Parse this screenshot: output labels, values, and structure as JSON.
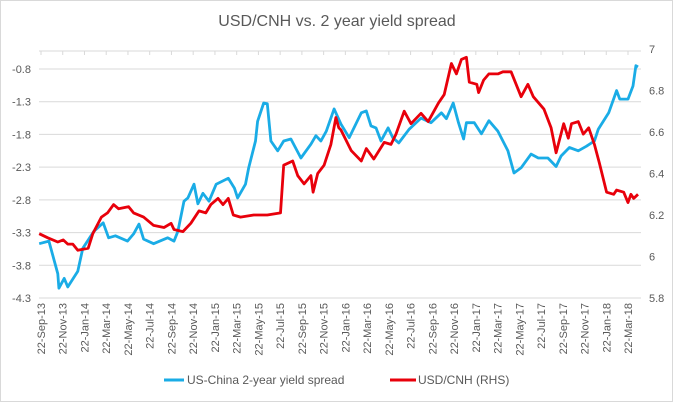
{
  "chart_data": {
    "type": "line",
    "title": "USD/CNH vs. 2 year yield spread",
    "xlabel": "",
    "ylabel": "",
    "x_tick_labels": [
      "22-Sep-13",
      "22-Nov-13",
      "22-Jan-14",
      "22-Mar-14",
      "22-May-14",
      "22-Jul-14",
      "22-Sep-14",
      "22-Nov-14",
      "22-Jan-15",
      "22-Mar-15",
      "22-May-15",
      "22-Jul-15",
      "22-Sep-15",
      "22-Nov-15",
      "22-Jan-16",
      "22-Mar-16",
      "22-May-16",
      "22-Jul-16",
      "22-Sep-16",
      "22-Nov-16",
      "22-Jan-17",
      "22-Mar-17",
      "22-May-17",
      "22-Jul-17",
      "22-Sep-17",
      "22-Nov-17",
      "22-Jan-18",
      "22-Mar-18"
    ],
    "y_left": {
      "ticks": [
        "-0.8",
        "-1.3",
        "-1.8",
        "-2.3",
        "-2.8",
        "-3.3",
        "-3.8",
        "-4.3"
      ],
      "min": -4.3,
      "max": -0.8
    },
    "y_right": {
      "ticks": [
        "7",
        "6.8",
        "6.6",
        "6.4",
        "6.2",
        "6",
        "5.8"
      ],
      "min": 5.8,
      "max": 7
    },
    "grid": true,
    "legend_position": "bottom",
    "series": [
      {
        "name": "US-China 2-year yield spread",
        "axis": "left",
        "color": "#1AACE6",
        "points": [
          [
            "2013-09-17",
            -3.47
          ],
          [
            "2013-10-14",
            -3.43
          ],
          [
            "2013-11-08",
            -3.93
          ],
          [
            "2013-11-11",
            -4.15
          ],
          [
            "2013-11-26",
            -4.0
          ],
          [
            "2013-12-06",
            -4.13
          ],
          [
            "2014-01-03",
            -3.89
          ],
          [
            "2014-01-17",
            -3.54
          ],
          [
            "2014-02-17",
            -3.28
          ],
          [
            "2014-03-15",
            -3.15
          ],
          [
            "2014-03-30",
            -3.38
          ],
          [
            "2014-04-18",
            -3.35
          ],
          [
            "2014-05-22",
            -3.43
          ],
          [
            "2014-06-08",
            -3.32
          ],
          [
            "2014-06-23",
            -3.17
          ],
          [
            "2014-07-06",
            -3.4
          ],
          [
            "2014-08-03",
            -3.47
          ],
          [
            "2014-09-11",
            -3.38
          ],
          [
            "2014-09-29",
            -3.43
          ],
          [
            "2014-10-10",
            -3.28
          ],
          [
            "2014-10-27",
            -2.82
          ],
          [
            "2014-11-07",
            -2.77
          ],
          [
            "2014-11-24",
            -2.56
          ],
          [
            "2014-12-05",
            -2.86
          ],
          [
            "2014-12-19",
            -2.7
          ],
          [
            "2015-01-05",
            -2.82
          ],
          [
            "2015-01-25",
            -2.56
          ],
          [
            "2015-02-28",
            -2.47
          ],
          [
            "2015-03-17",
            -2.62
          ],
          [
            "2015-03-26",
            -2.77
          ],
          [
            "2015-04-17",
            -2.56
          ],
          [
            "2015-04-26",
            -2.31
          ],
          [
            "2015-05-15",
            -1.9
          ],
          [
            "2015-05-21",
            -1.6
          ],
          [
            "2015-06-07",
            -1.32
          ],
          [
            "2015-06-17",
            -1.33
          ],
          [
            "2015-06-27",
            -1.9
          ],
          [
            "2015-07-16",
            -2.05
          ],
          [
            "2015-08-02",
            -1.9
          ],
          [
            "2015-08-22",
            -1.87
          ],
          [
            "2015-09-19",
            -2.16
          ],
          [
            "2015-10-17",
            -1.95
          ],
          [
            "2015-10-31",
            -1.82
          ],
          [
            "2015-11-14",
            -1.9
          ],
          [
            "2015-11-29",
            -1.75
          ],
          [
            "2015-12-21",
            -1.41
          ],
          [
            "2016-01-09",
            -1.64
          ],
          [
            "2016-02-01",
            -1.85
          ],
          [
            "2016-03-06",
            -1.47
          ],
          [
            "2016-03-20",
            -1.44
          ],
          [
            "2016-04-02",
            -1.67
          ],
          [
            "2016-04-16",
            -1.7
          ],
          [
            "2016-04-30",
            -1.9
          ],
          [
            "2016-05-20",
            -1.7
          ],
          [
            "2016-06-02",
            -1.85
          ],
          [
            "2016-06-19",
            -1.93
          ],
          [
            "2016-07-18",
            -1.72
          ],
          [
            "2016-08-20",
            -1.55
          ],
          [
            "2016-09-17",
            -1.62
          ],
          [
            "2016-10-16",
            -1.47
          ],
          [
            "2016-10-30",
            -1.56
          ],
          [
            "2016-11-18",
            -1.32
          ],
          [
            "2016-12-03",
            -1.62
          ],
          [
            "2016-12-17",
            -1.87
          ],
          [
            "2016-12-25",
            -1.62
          ],
          [
            "2017-01-16",
            -1.62
          ],
          [
            "2017-02-05",
            -1.79
          ],
          [
            "2017-02-26",
            -1.59
          ],
          [
            "2017-03-23",
            -1.75
          ],
          [
            "2017-04-20",
            -2.05
          ],
          [
            "2017-05-07",
            -2.39
          ],
          [
            "2017-05-27",
            -2.31
          ],
          [
            "2017-06-24",
            -2.1
          ],
          [
            "2017-07-14",
            -2.16
          ],
          [
            "2017-08-10",
            -2.16
          ],
          [
            "2017-09-02",
            -2.29
          ],
          [
            "2017-09-16",
            -2.13
          ],
          [
            "2017-10-09",
            -2.0
          ],
          [
            "2017-11-03",
            -2.05
          ],
          [
            "2017-11-26",
            -1.98
          ],
          [
            "2017-12-18",
            -1.9
          ],
          [
            "2017-12-29",
            -1.72
          ],
          [
            "2018-01-27",
            -1.47
          ],
          [
            "2018-02-18",
            -1.13
          ],
          [
            "2018-02-27",
            -1.26
          ],
          [
            "2018-03-22",
            -1.26
          ],
          [
            "2018-04-05",
            -1.06
          ],
          [
            "2018-04-13",
            -0.75
          ],
          [
            "2018-04-19",
            -0.77
          ]
        ]
      },
      {
        "name": "USD/CNH (RHS)",
        "axis": "right",
        "color": "#E8000B",
        "points": [
          [
            "2013-09-17",
            6.11
          ],
          [
            "2013-10-11",
            6.09
          ],
          [
            "2013-11-08",
            6.07
          ],
          [
            "2013-11-23",
            6.08
          ],
          [
            "2013-12-06",
            6.06
          ],
          [
            "2013-12-20",
            6.06
          ],
          [
            "2014-01-03",
            6.03
          ],
          [
            "2014-02-01",
            6.04
          ],
          [
            "2014-02-14",
            6.11
          ],
          [
            "2014-03-10",
            6.19
          ],
          [
            "2014-03-27",
            6.21
          ],
          [
            "2014-04-13",
            6.25
          ],
          [
            "2014-04-27",
            6.23
          ],
          [
            "2014-05-25",
            6.24
          ],
          [
            "2014-06-08",
            6.21
          ],
          [
            "2014-07-06",
            6.19
          ],
          [
            "2014-08-03",
            6.15
          ],
          [
            "2014-09-01",
            6.14
          ],
          [
            "2014-09-21",
            6.16
          ],
          [
            "2014-09-29",
            6.13
          ],
          [
            "2014-10-24",
            6.12
          ],
          [
            "2014-11-15",
            6.16
          ],
          [
            "2014-12-08",
            6.22
          ],
          [
            "2014-12-27",
            6.21
          ],
          [
            "2015-01-10",
            6.25
          ],
          [
            "2015-01-30",
            6.28
          ],
          [
            "2015-02-13",
            6.25
          ],
          [
            "2015-02-28",
            6.28
          ],
          [
            "2015-03-14",
            6.2
          ],
          [
            "2015-04-03",
            6.19
          ],
          [
            "2015-05-10",
            6.2
          ],
          [
            "2015-06-17",
            6.2
          ],
          [
            "2015-07-24",
            6.21
          ],
          [
            "2015-08-02",
            6.44
          ],
          [
            "2015-08-27",
            6.46
          ],
          [
            "2015-09-10",
            6.39
          ],
          [
            "2015-09-28",
            6.35
          ],
          [
            "2015-10-17",
            6.39
          ],
          [
            "2015-10-23",
            6.31
          ],
          [
            "2015-11-05",
            6.4
          ],
          [
            "2015-11-23",
            6.44
          ],
          [
            "2015-12-12",
            6.54
          ],
          [
            "2015-12-26",
            6.67
          ],
          [
            "2016-01-03",
            6.62
          ],
          [
            "2016-01-09",
            6.61
          ],
          [
            "2016-02-07",
            6.51
          ],
          [
            "2016-03-06",
            6.46
          ],
          [
            "2016-03-20",
            6.52
          ],
          [
            "2016-04-10",
            6.47
          ],
          [
            "2016-05-09",
            6.55
          ],
          [
            "2016-05-28",
            6.54
          ],
          [
            "2016-06-11",
            6.59
          ],
          [
            "2016-07-04",
            6.7
          ],
          [
            "2016-07-23",
            6.64
          ],
          [
            "2016-08-20",
            6.69
          ],
          [
            "2016-09-09",
            6.65
          ],
          [
            "2016-10-08",
            6.74
          ],
          [
            "2016-10-24",
            6.78
          ],
          [
            "2016-11-13",
            6.93
          ],
          [
            "2016-11-27",
            6.88
          ],
          [
            "2016-12-11",
            6.95
          ],
          [
            "2016-12-25",
            6.96
          ],
          [
            "2017-01-02",
            6.84
          ],
          [
            "2017-01-23",
            6.83
          ],
          [
            "2017-01-28",
            6.79
          ],
          [
            "2017-02-11",
            6.85
          ],
          [
            "2017-02-26",
            6.88
          ],
          [
            "2017-03-23",
            6.88
          ],
          [
            "2017-04-06",
            6.89
          ],
          [
            "2017-04-29",
            6.89
          ],
          [
            "2017-05-27",
            6.77
          ],
          [
            "2017-06-15",
            6.83
          ],
          [
            "2017-06-30",
            6.77
          ],
          [
            "2017-07-30",
            6.71
          ],
          [
            "2017-08-19",
            6.62
          ],
          [
            "2017-09-02",
            6.5
          ],
          [
            "2017-09-23",
            6.64
          ],
          [
            "2017-10-06",
            6.57
          ],
          [
            "2017-10-15",
            6.64
          ],
          [
            "2017-11-03",
            6.65
          ],
          [
            "2017-11-17",
            6.59
          ],
          [
            "2017-12-02",
            6.62
          ],
          [
            "2017-12-18",
            6.54
          ],
          [
            "2018-01-01",
            6.45
          ],
          [
            "2018-01-21",
            6.31
          ],
          [
            "2018-02-10",
            6.3
          ],
          [
            "2018-02-18",
            6.32
          ],
          [
            "2018-03-10",
            6.31
          ],
          [
            "2018-03-22",
            6.26
          ],
          [
            "2018-03-30",
            6.3
          ],
          [
            "2018-04-07",
            6.28
          ],
          [
            "2018-04-19",
            6.3
          ]
        ]
      }
    ]
  }
}
